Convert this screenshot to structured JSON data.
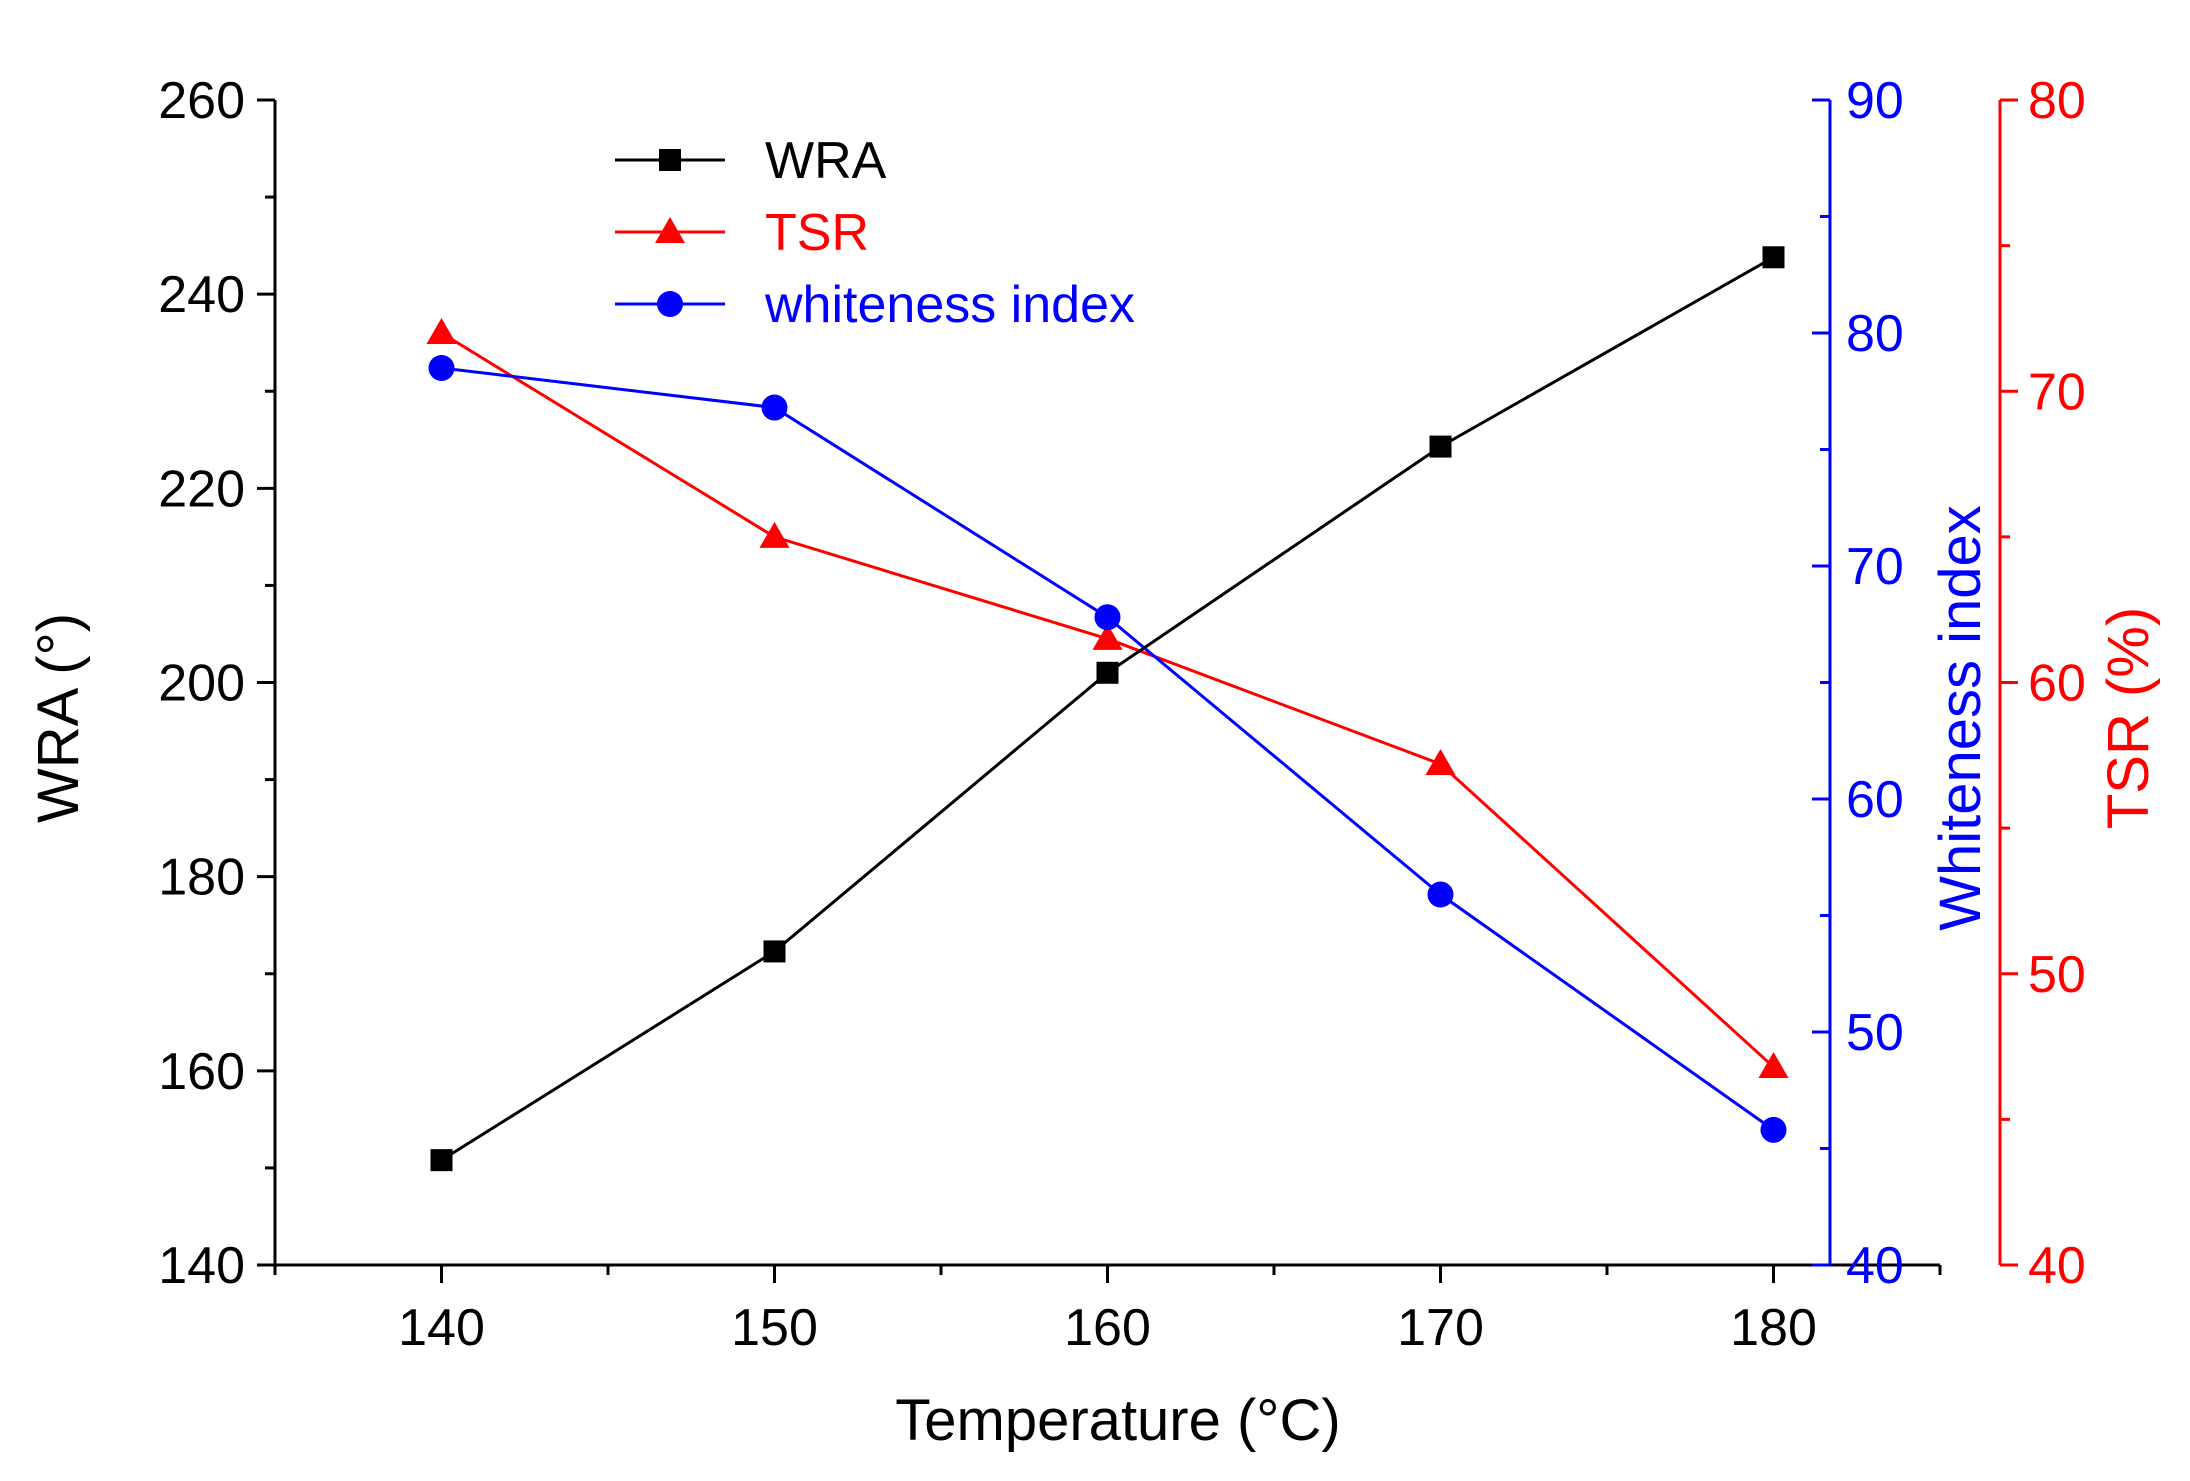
{
  "chart_data": {
    "type": "line",
    "x": [
      140,
      150,
      160,
      170,
      180
    ],
    "xlabel": "Temperature (°C)",
    "xlim": [
      135,
      185
    ],
    "xticks": [
      140,
      150,
      160,
      170,
      180
    ],
    "series": [
      {
        "name": "WRA",
        "axis": "WRA",
        "color": "#000000",
        "marker": "square",
        "values": [
          150.8,
          172.3,
          201.0,
          224.3,
          243.8
        ]
      },
      {
        "name": "TSR",
        "axis": "TSR",
        "color": "#ff0000",
        "marker": "triangle",
        "values": [
          72.0,
          65.0,
          61.5,
          57.2,
          46.8
        ]
      },
      {
        "name": "whiteness index",
        "axis": "whiteness",
        "color": "#0000ff",
        "marker": "circle",
        "values": [
          78.5,
          76.8,
          67.8,
          55.9,
          45.8
        ]
      }
    ],
    "axes": [
      {
        "id": "WRA",
        "label": "WRA (°)",
        "side": "left",
        "color": "#000000",
        "ylim": [
          140,
          260
        ],
        "ticks": [
          140,
          160,
          180,
          200,
          220,
          240,
          260
        ]
      },
      {
        "id": "whiteness",
        "label": "Whiteness index",
        "side": "right",
        "color": "#0000ff",
        "ylim": [
          40,
          90
        ],
        "ticks": [
          40,
          50,
          60,
          70,
          80,
          90
        ]
      },
      {
        "id": "TSR",
        "label": "TSR (%)",
        "side": "right-outer",
        "color": "#ff0000",
        "ylim": [
          40,
          80
        ],
        "ticks": [
          40,
          50,
          60,
          70,
          80
        ]
      }
    ],
    "legend": {
      "placement": "top-left",
      "entries": [
        "WRA",
        "TSR",
        "whiteness index"
      ]
    },
    "grid": false
  }
}
